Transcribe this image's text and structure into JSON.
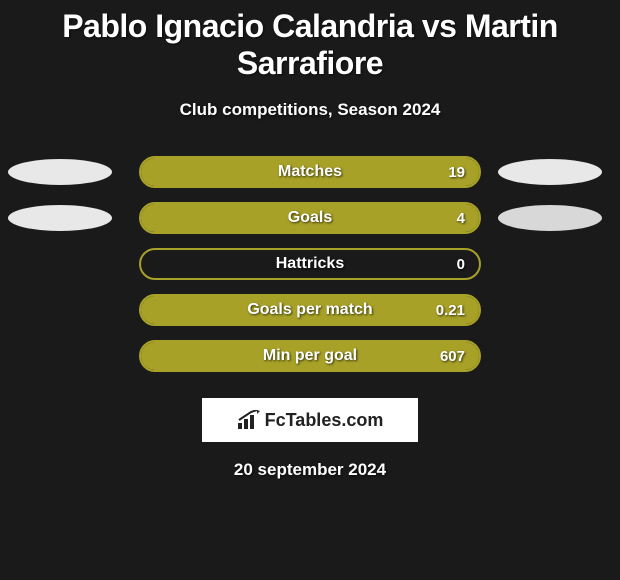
{
  "title": "Pablo Ignacio Calandria vs Martin Sarrafiore",
  "subtitle": "Club competitions, Season 2024",
  "date": "20 september 2024",
  "brand": "FcTables.com",
  "bar_color": "#a8a128",
  "bar_border": "#a8a128",
  "ellipse_bg": "#e8e8e8",
  "stats": [
    {
      "label": "Matches",
      "value": "19",
      "fill_pct": 100,
      "show_left_ellipse": true,
      "show_right_ellipse": true,
      "right_ellipse_bg": "#e8e8e8"
    },
    {
      "label": "Goals",
      "value": "4",
      "fill_pct": 100,
      "show_left_ellipse": true,
      "show_right_ellipse": true,
      "right_ellipse_bg": "#d8d8d8"
    },
    {
      "label": "Hattricks",
      "value": "0",
      "fill_pct": 0,
      "show_left_ellipse": false,
      "show_right_ellipse": false
    },
    {
      "label": "Goals per match",
      "value": "0.21",
      "fill_pct": 100,
      "show_left_ellipse": false,
      "show_right_ellipse": false
    },
    {
      "label": "Min per goal",
      "value": "607",
      "fill_pct": 100,
      "show_left_ellipse": false,
      "show_right_ellipse": false
    }
  ]
}
